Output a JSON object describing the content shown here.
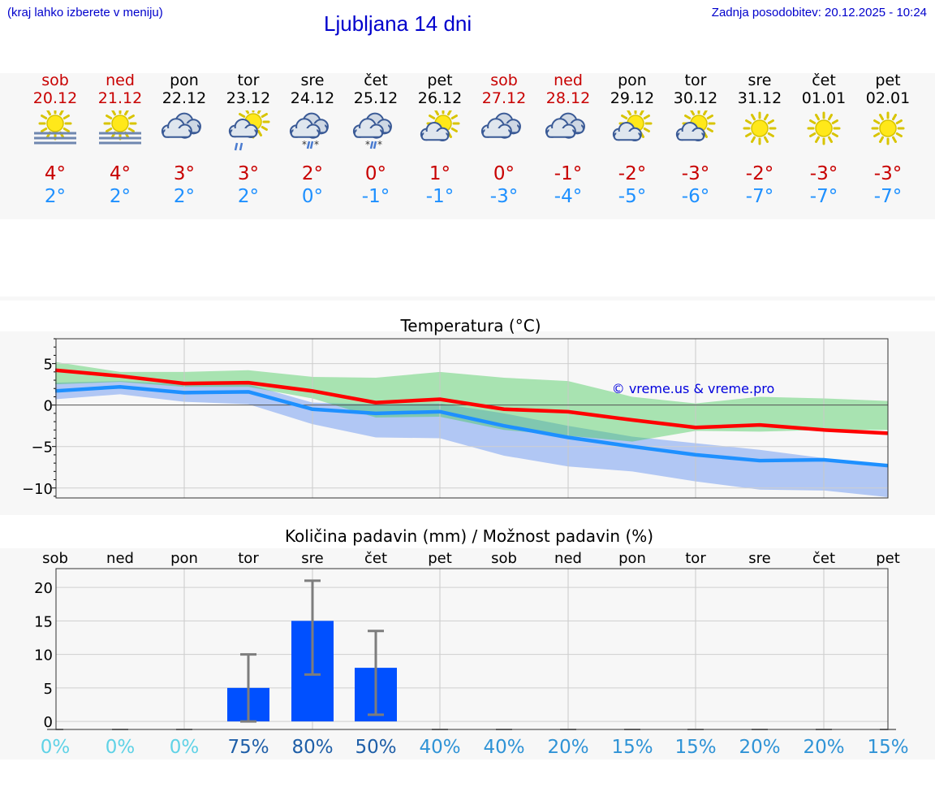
{
  "header": {
    "hint": "(kraj lahko izberete v meniju)",
    "title": "Ljubljana 14 dni",
    "updated": "Zadnja posodobitev: 20.12.2025 - 10:24"
  },
  "colors": {
    "weekend": "#c80000",
    "max": "#ff0000",
    "min": "#1e90ff",
    "bar": "#0050ff"
  },
  "days": [
    {
      "name": "sob",
      "date": "20.12",
      "weekend": true,
      "icon": "sun-fog-icon",
      "max": "4°",
      "min": "2°",
      "precip_chance": "0%"
    },
    {
      "name": "ned",
      "date": "21.12",
      "weekend": true,
      "icon": "sun-fog-icon",
      "max": "4°",
      "min": "2°",
      "precip_chance": "0%"
    },
    {
      "name": "pon",
      "date": "22.12",
      "weekend": false,
      "icon": "cloudy-icon",
      "max": "3°",
      "min": "2°",
      "precip_chance": "0%"
    },
    {
      "name": "tor",
      "date": "23.12",
      "weekend": false,
      "icon": "sun-cloud-rain-icon",
      "max": "3°",
      "min": "2°",
      "precip_chance": "75%"
    },
    {
      "name": "sre",
      "date": "24.12",
      "weekend": false,
      "icon": "cloud-rain-snow-icon",
      "max": "2°",
      "min": "0°",
      "precip_chance": "80%"
    },
    {
      "name": "čet",
      "date": "25.12",
      "weekend": false,
      "icon": "cloud-rain-snow-icon",
      "max": "0°",
      "min": "-1°",
      "precip_chance": "50%"
    },
    {
      "name": "pet",
      "date": "26.12",
      "weekend": false,
      "icon": "sun-cloud-icon",
      "max": "1°",
      "min": "-1°",
      "precip_chance": "40%"
    },
    {
      "name": "sob",
      "date": "27.12",
      "weekend": true,
      "icon": "cloudy-icon",
      "max": "0°",
      "min": "-3°",
      "precip_chance": "40%"
    },
    {
      "name": "ned",
      "date": "28.12",
      "weekend": true,
      "icon": "cloudy-icon",
      "max": "-1°",
      "min": "-4°",
      "precip_chance": "20%"
    },
    {
      "name": "pon",
      "date": "29.12",
      "weekend": false,
      "icon": "sun-cloud-icon",
      "max": "-2°",
      "min": "-5°",
      "precip_chance": "15%"
    },
    {
      "name": "tor",
      "date": "30.12",
      "weekend": false,
      "icon": "sun-cloud-icon",
      "max": "-3°",
      "min": "-6°",
      "precip_chance": "15%"
    },
    {
      "name": "sre",
      "date": "31.12",
      "weekend": false,
      "icon": "sun-icon",
      "max": "-2°",
      "min": "-7°",
      "precip_chance": "20%"
    },
    {
      "name": "čet",
      "date": "01.01",
      "weekend": false,
      "icon": "sun-icon",
      "max": "-3°",
      "min": "-7°",
      "precip_chance": "20%"
    },
    {
      "name": "pet",
      "date": "02.01",
      "weekend": false,
      "icon": "sun-icon",
      "max": "-3°",
      "min": "-7°",
      "precip_chance": "15%"
    }
  ],
  "chart_data": [
    {
      "type": "line",
      "title": "Temperatura (°C)",
      "watermark": "© vreme.us & vreme.pro",
      "ylim": [
        -11.2,
        8
      ],
      "yticks": [
        5,
        0,
        -5,
        -10
      ],
      "ytick_labels": [
        "5",
        "0",
        "−5",
        "−10"
      ],
      "x": [
        0,
        1,
        2,
        3,
        4,
        5,
        6,
        7,
        8,
        9,
        10,
        11,
        12,
        13
      ],
      "series": [
        {
          "name": "max",
          "values": [
            4.2,
            3.5,
            2.6,
            2.7,
            1.7,
            0.3,
            0.7,
            -0.5,
            -0.8,
            -1.8,
            -2.7,
            -2.4,
            -3.0,
            -3.4
          ]
        },
        {
          "name": "min",
          "values": [
            1.7,
            2.2,
            1.5,
            1.6,
            -0.5,
            -1.0,
            -0.8,
            -2.5,
            -3.9,
            -5.0,
            -6.0,
            -6.7,
            -6.6,
            -7.3
          ]
        },
        {
          "name": "max_range",
          "low": [
            2.5,
            2.8,
            2.2,
            2.2,
            0.8,
            -1.5,
            -1.4,
            -3.0,
            -3.7,
            -4.4,
            -3.1,
            -3.2,
            -3.0,
            -3.0
          ],
          "high": [
            5.2,
            4.0,
            4.0,
            4.2,
            3.4,
            3.3,
            4.0,
            3.3,
            2.9,
            1.0,
            0.2,
            1.0,
            0.8,
            0.5
          ]
        },
        {
          "name": "min_range",
          "low": [
            0.7,
            1.3,
            0.4,
            0.1,
            -2.3,
            -3.9,
            -4.0,
            -6.1,
            -7.4,
            -8.0,
            -9.2,
            -10.2,
            -10.3,
            -11.1
          ],
          "high": [
            2.7,
            2.9,
            2.5,
            2.5,
            0.3,
            0.1,
            0.2,
            -1.0,
            -2.5,
            -3.8,
            -4.6,
            -5.4,
            -6.4,
            -7.3
          ]
        }
      ]
    },
    {
      "type": "bar",
      "title": "Količina padavin (mm) / Možnost padavin (%)",
      "categories": [
        "sob",
        "ned",
        "pon",
        "tor",
        "sre",
        "čet",
        "pet",
        "sob",
        "ned",
        "pon",
        "tor",
        "sre",
        "čet",
        "pet"
      ],
      "ylim": [
        -1.2,
        22.8
      ],
      "yticks": [
        20,
        15,
        10,
        5,
        0
      ],
      "ytick_labels": [
        "20",
        "15",
        "10",
        "5",
        "0"
      ],
      "values": [
        0,
        0,
        0,
        5,
        15,
        8,
        0,
        0,
        0,
        0,
        0,
        0,
        0,
        0
      ],
      "error_low": [
        0,
        0,
        0,
        0,
        7,
        1,
        0,
        0,
        0,
        0,
        0,
        0,
        0,
        0
      ],
      "error_high": [
        0,
        0,
        0,
        10,
        21,
        13.5,
        0,
        0,
        0,
        0,
        0,
        0,
        0,
        0
      ],
      "chance": [
        "0%",
        "0%",
        "0%",
        "75%",
        "80%",
        "50%",
        "40%",
        "40%",
        "20%",
        "15%",
        "15%",
        "20%",
        "20%",
        "15%"
      ]
    }
  ]
}
